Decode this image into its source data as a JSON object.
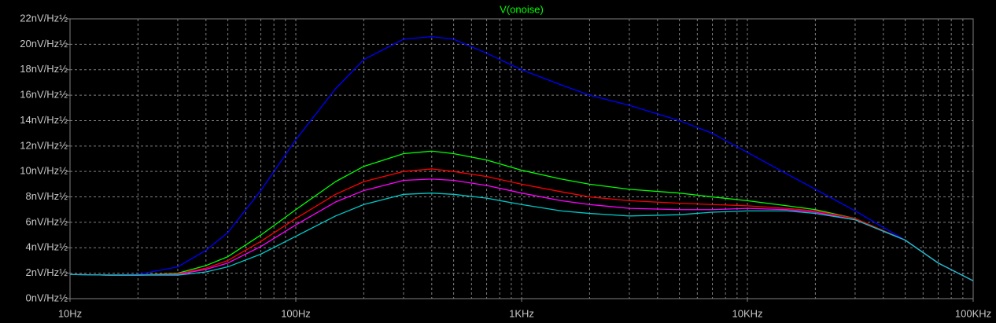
{
  "chart_data": {
    "type": "line",
    "title": "V(onoise)",
    "title_color": "#00ff00",
    "x_scale": "log",
    "grid": true,
    "minor_grid": true,
    "xlim": [
      10,
      100000
    ],
    "ylim": [
      0,
      22
    ],
    "xticks": [
      {
        "value": 10,
        "label": "10Hz"
      },
      {
        "value": 100,
        "label": "100Hz"
      },
      {
        "value": 1000,
        "label": "1KHz"
      },
      {
        "value": 10000,
        "label": "10KHz"
      },
      {
        "value": 100000,
        "label": "100KHz"
      }
    ],
    "yticks": [
      {
        "value": 0,
        "label": "0nV/Hz½"
      },
      {
        "value": 2,
        "label": "2nV/Hz½"
      },
      {
        "value": 4,
        "label": "4nV/Hz½"
      },
      {
        "value": 6,
        "label": "6nV/Hz½"
      },
      {
        "value": 8,
        "label": "8nV/Hz½"
      },
      {
        "value": 10,
        "label": "10nV/Hz½"
      },
      {
        "value": 12,
        "label": "12nV/Hz½"
      },
      {
        "value": 14,
        "label": "14nV/Hz½"
      },
      {
        "value": 16,
        "label": "16nV/Hz½"
      },
      {
        "value": 18,
        "label": "18nV/Hz½"
      },
      {
        "value": 20,
        "label": "20nV/Hz½"
      },
      {
        "value": 22,
        "label": "22nV/Hz½"
      }
    ],
    "x": [
      10,
      15,
      20,
      30,
      40,
      50,
      70,
      100,
      150,
      200,
      300,
      400,
      500,
      700,
      1000,
      1500,
      2000,
      3000,
      5000,
      7000,
      10000,
      15000,
      20000,
      30000,
      50000,
      70000,
      100000
    ],
    "series": [
      {
        "color": "#0000ff",
        "values": [
          1.9,
          1.85,
          1.9,
          2.5,
          3.8,
          5.2,
          8.5,
          12.5,
          16.5,
          18.8,
          20.4,
          20.6,
          20.4,
          19.3,
          18.0,
          16.8,
          16.0,
          15.2,
          14.0,
          13.0,
          11.5,
          9.8,
          8.6,
          6.9,
          4.6,
          2.8,
          1.4
        ]
      },
      {
        "color": "#00ff00",
        "values": [
          1.9,
          1.85,
          1.85,
          2.0,
          2.6,
          3.3,
          5.0,
          7.0,
          9.2,
          10.4,
          11.4,
          11.6,
          11.4,
          10.9,
          10.1,
          9.4,
          9.0,
          8.6,
          8.3,
          8.0,
          7.7,
          7.3,
          7.0,
          6.3,
          4.6,
          2.8,
          1.4
        ]
      },
      {
        "color": "#ff0000",
        "values": [
          1.9,
          1.85,
          1.85,
          1.95,
          2.4,
          3.0,
          4.5,
          6.3,
          8.2,
          9.2,
          10.0,
          10.2,
          10.0,
          9.6,
          9.0,
          8.4,
          8.0,
          7.7,
          7.5,
          7.4,
          7.3,
          7.1,
          6.9,
          6.3,
          4.6,
          2.8,
          1.4
        ]
      },
      {
        "color": "#ff00ff",
        "values": [
          1.9,
          1.85,
          1.85,
          1.9,
          2.3,
          2.8,
          4.1,
          5.8,
          7.6,
          8.5,
          9.3,
          9.4,
          9.3,
          8.9,
          8.3,
          7.7,
          7.4,
          7.1,
          7.0,
          7.0,
          7.1,
          7.0,
          6.8,
          6.2,
          4.6,
          2.8,
          1.4
        ]
      },
      {
        "color": "#00c8c8",
        "values": [
          1.9,
          1.85,
          1.85,
          1.85,
          2.1,
          2.5,
          3.5,
          4.9,
          6.5,
          7.4,
          8.2,
          8.3,
          8.2,
          7.9,
          7.4,
          6.9,
          6.7,
          6.5,
          6.6,
          6.8,
          6.9,
          6.9,
          6.7,
          6.2,
          4.6,
          2.8,
          1.4
        ]
      }
    ]
  }
}
